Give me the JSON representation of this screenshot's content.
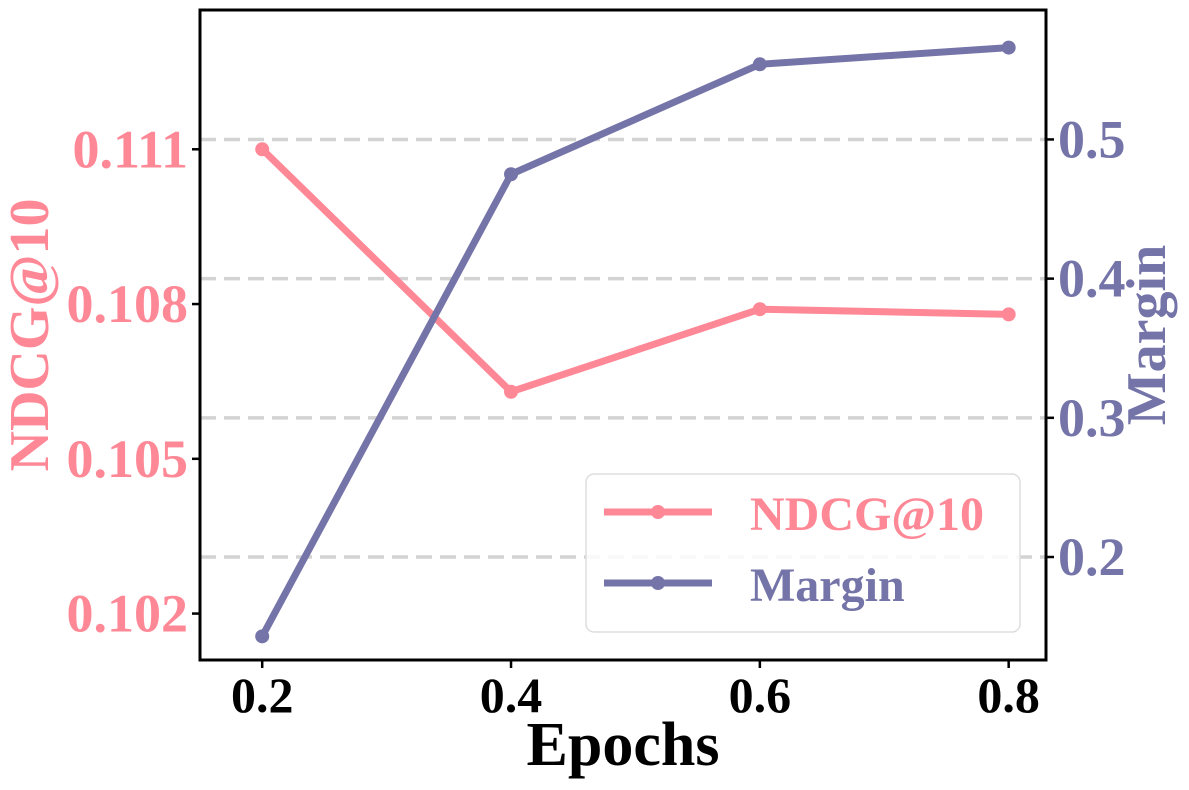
{
  "colors": {
    "ndcg": "#FF8896",
    "margin": "#7474A8",
    "axis": "#000000",
    "grid": "#D3D3D3",
    "legend_border": "#DDDDDD"
  },
  "chart_data": {
    "type": "line",
    "title": "",
    "xlabel": "Epochs",
    "ylabel_left": "NDCG@10",
    "ylabel_right": "Margin",
    "x": [
      0.2,
      0.4,
      0.6,
      0.8
    ],
    "x_ticks": [
      "0.2",
      "0.4",
      "0.6",
      "0.8"
    ],
    "xlim": [
      0.15,
      0.83
    ],
    "series": [
      {
        "name": "NDCG@10",
        "axis": "left",
        "values": [
          0.111,
          0.1063,
          0.1079,
          0.1078
        ]
      },
      {
        "name": "Margin",
        "axis": "right",
        "values": [
          0.143,
          0.475,
          0.554,
          0.566
        ]
      }
    ],
    "ylim_left": [
      0.1011,
      0.1137
    ],
    "y_ticks_left": [
      "0.102",
      "0.105",
      "0.108",
      "0.111"
    ],
    "ylim_right": [
      0.126,
      0.593
    ],
    "y_ticks_right": [
      "0.2",
      "0.3",
      "0.4",
      "0.5"
    ],
    "grid": "horizontal dashed at right-axis ticks",
    "legend": "lower-right"
  }
}
